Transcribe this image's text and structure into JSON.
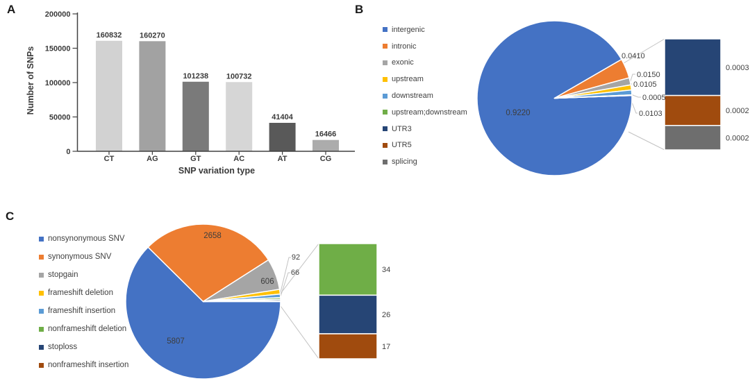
{
  "figure": {
    "background": "#ffffff"
  },
  "panels": {
    "a_label": "A",
    "b_label": "B",
    "c_label": "C"
  },
  "chart_data": [
    {
      "id": "A",
      "type": "bar",
      "title": "",
      "xlabel": "SNP variation type",
      "ylabel": "Number of SNPs",
      "categories": [
        "CT",
        "AG",
        "GT",
        "AC",
        "AT",
        "CG"
      ],
      "values": [
        160832,
        160270,
        101238,
        100732,
        41404,
        16466
      ],
      "bar_colors": [
        "#d2d2d2",
        "#a2a2a2",
        "#7a7a7a",
        "#d6d6d6",
        "#595959",
        "#acacac"
      ],
      "ylim": [
        0,
        200000
      ],
      "yticks": [
        0,
        50000,
        100000,
        150000,
        200000
      ],
      "grid": false,
      "legend": "none"
    },
    {
      "id": "B",
      "type": "pie",
      "variant": "pie-of-pie",
      "legend_position": "left",
      "slices": [
        {
          "label": "intergenic",
          "value": 0.922,
          "display": "0.9220",
          "color": "#4472c4"
        },
        {
          "label": "intronic",
          "value": 0.041,
          "display": "0.0410",
          "color": "#ed7d31"
        },
        {
          "label": "exonic",
          "value": 0.015,
          "display": "0.0150",
          "color": "#a5a5a5"
        },
        {
          "label": "upstream",
          "value": 0.0105,
          "display": "0.0105",
          "color": "#ffc000"
        },
        {
          "label": "downstream",
          "value": 0.0103,
          "display": "0.0103",
          "color": "#5b9bd5"
        },
        {
          "label": "upstream;downstream",
          "value": 0.0005,
          "display": "0.0005",
          "color": "#70ad47"
        },
        {
          "label": "UTR3",
          "value": 0.0003,
          "display": "0.0003",
          "color": "#264575",
          "breakout": true
        },
        {
          "label": "UTR5",
          "value": 0.0002,
          "display": "0.0002",
          "color": "#a04b0e",
          "breakout": true
        },
        {
          "label": "splicing",
          "value": 0.0002,
          "display": "0.0002",
          "color": "#6e6e6e",
          "breakout": true
        }
      ]
    },
    {
      "id": "C",
      "type": "pie",
      "variant": "pie-of-pie",
      "legend_position": "left",
      "slices": [
        {
          "label": "nonsynonymous SNV",
          "value": 5807,
          "display": "5807",
          "color": "#4472c4"
        },
        {
          "label": "synonymous SNV",
          "value": 2658,
          "display": "2658",
          "color": "#ed7d31"
        },
        {
          "label": "stopgain",
          "value": 606,
          "display": "606",
          "color": "#a5a5a5"
        },
        {
          "label": "frameshift deletion",
          "value": 92,
          "display": "92",
          "color": "#ffc000"
        },
        {
          "label": "frameshift insertion",
          "value": 66,
          "display": "66",
          "color": "#5b9bd5"
        },
        {
          "label": "nonframeshift deletion",
          "value": 34,
          "display": "34",
          "color": "#6fae47",
          "breakout": true
        },
        {
          "label": "stoploss",
          "value": 26,
          "display": "26",
          "color": "#264575",
          "breakout": true
        },
        {
          "label": "nonframeshift insertion",
          "value": 17,
          "display": "17",
          "color": "#a04b0e",
          "breakout": true
        }
      ]
    }
  ]
}
